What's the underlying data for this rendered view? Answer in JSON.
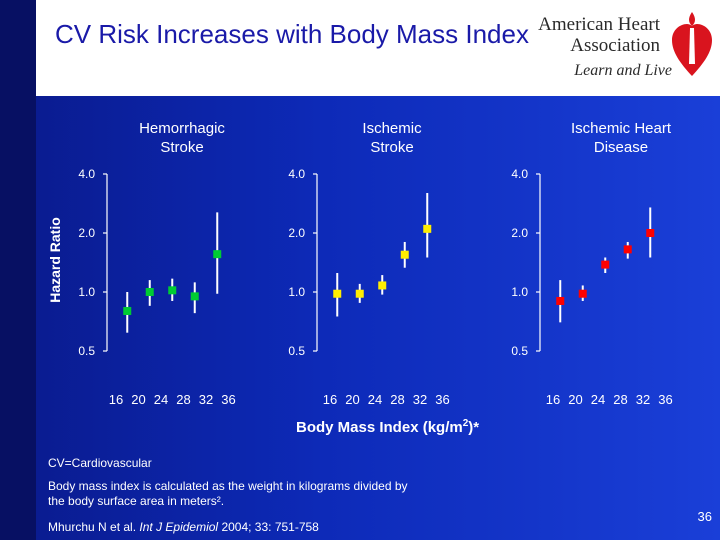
{
  "slide": {
    "title": "CV Risk Increases with Body Mass Index",
    "logo_name": "American Heart Association",
    "logo_tagline": "Learn and Live",
    "footnote_abbrev": "CV=Cardiovascular",
    "footnote_bmi": "Body mass index is calculated as the weight in kilograms divided by the body surface area in meters².",
    "citation_author": "Mhurchu N et al.",
    "citation_journal": "Int J Epidemiol",
    "citation_details": "2004; 33: 751-758",
    "slide_number": "36"
  },
  "chart_data": {
    "type": "scatter",
    "ylabel": "Hazard Ratio",
    "xlabel": "Body Mass Index (kg/m2)*",
    "yscale": "log",
    "ylim": [
      0.5,
      4.0
    ],
    "yticks": [
      "4.0",
      "2.0",
      "1.0",
      "0.5"
    ],
    "xticks": [
      "16",
      "20",
      "24",
      "28",
      "32",
      "36"
    ],
    "panels": [
      {
        "title": "Hemorrhagic\nStroke",
        "color": "#00cc33",
        "points": [
          {
            "bmi": 18,
            "hr": 0.8,
            "lo": 0.62,
            "hi": 1.0
          },
          {
            "bmi": 22,
            "hr": 1.0,
            "lo": 0.85,
            "hi": 1.15
          },
          {
            "bmi": 26,
            "hr": 1.02,
            "lo": 0.9,
            "hi": 1.17
          },
          {
            "bmi": 30,
            "hr": 0.95,
            "lo": 0.78,
            "hi": 1.12
          },
          {
            "bmi": 34,
            "hr": 1.56,
            "lo": 0.98,
            "hi": 2.55
          }
        ]
      },
      {
        "title": "Ischemic\nStroke",
        "color": "#ffee00",
        "points": [
          {
            "bmi": 18,
            "hr": 0.98,
            "lo": 0.75,
            "hi": 1.25
          },
          {
            "bmi": 22,
            "hr": 0.98,
            "lo": 0.88,
            "hi": 1.1
          },
          {
            "bmi": 26,
            "hr": 1.08,
            "lo": 0.97,
            "hi": 1.22
          },
          {
            "bmi": 30,
            "hr": 1.55,
            "lo": 1.33,
            "hi": 1.8
          },
          {
            "bmi": 34,
            "hr": 2.1,
            "lo": 1.5,
            "hi": 3.2
          }
        ]
      },
      {
        "title": "Ischemic Heart\nDisease",
        "color": "#ff0000",
        "points": [
          {
            "bmi": 18,
            "hr": 0.9,
            "lo": 0.7,
            "hi": 1.15
          },
          {
            "bmi": 22,
            "hr": 0.98,
            "lo": 0.9,
            "hi": 1.08
          },
          {
            "bmi": 26,
            "hr": 1.38,
            "lo": 1.25,
            "hi": 1.5
          },
          {
            "bmi": 30,
            "hr": 1.65,
            "lo": 1.48,
            "hi": 1.8
          },
          {
            "bmi": 34,
            "hr": 2.0,
            "lo": 1.5,
            "hi": 2.7
          }
        ]
      }
    ]
  }
}
